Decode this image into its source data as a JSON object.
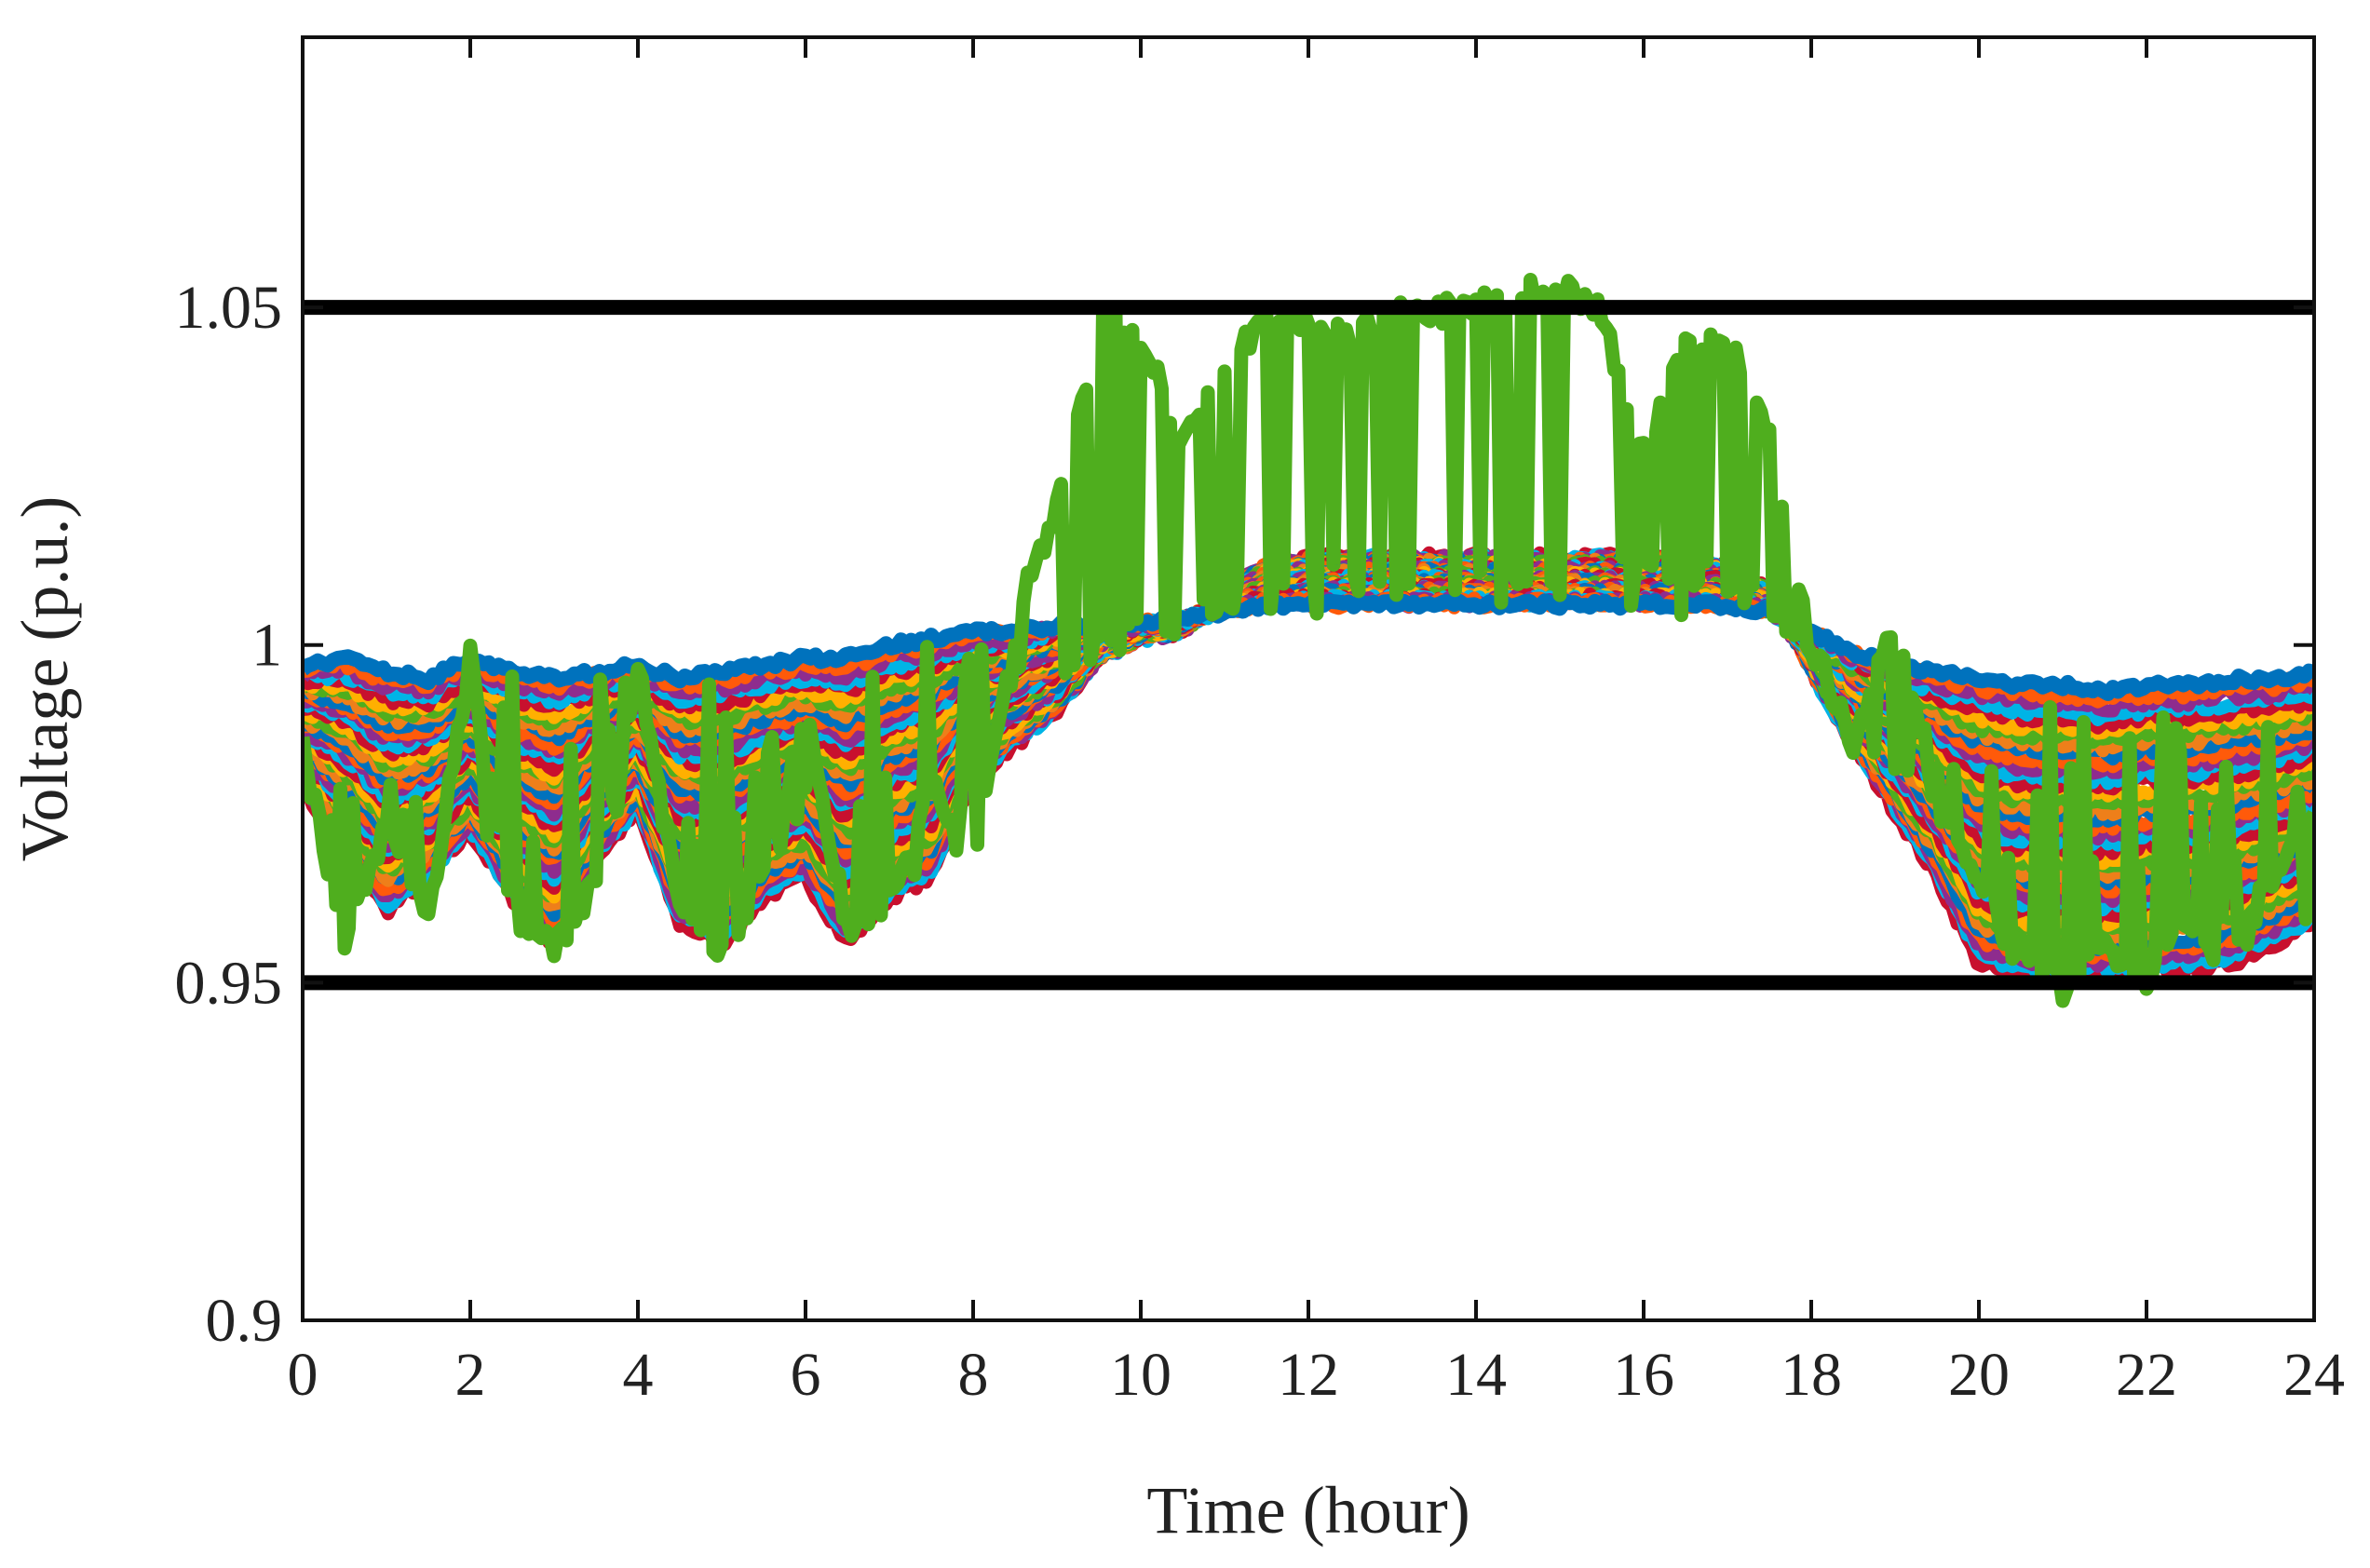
{
  "chart_data": {
    "type": "line",
    "title": "",
    "xlabel": "Time (hour)",
    "ylabel": "Voltage (p.u.)",
    "xlim": [
      0,
      24
    ],
    "ylim": [
      0.9,
      1.09
    ],
    "xticks": [
      0,
      2,
      4,
      6,
      8,
      10,
      12,
      14,
      16,
      18,
      20,
      22,
      24
    ],
    "xtick_labels": [
      "0",
      "2",
      "4",
      "6",
      "8",
      "10",
      "12",
      "14",
      "16",
      "18",
      "20",
      "22",
      "24"
    ],
    "yticks": [
      0.9,
      0.95,
      1.0,
      1.05
    ],
    "ytick_labels": [
      "0.9",
      "0.95",
      "1",
      "1.05"
    ],
    "grid": false,
    "legend": "none",
    "limit_lines": [
      {
        "y": 1.05,
        "color": "#000000"
      },
      {
        "y": 0.95,
        "color": "#000000"
      }
    ],
    "band_colors": [
      "#0072BD",
      "#FF5A0A",
      "#8E2C8E",
      "#00B4E6",
      "#C8102E",
      "#FFB000",
      "#4FAE1E",
      "#EE7F1A"
    ],
    "base_x": [
      0,
      0.5,
      1,
      1.5,
      2,
      2.5,
      3,
      3.5,
      4,
      4.5,
      5,
      5.5,
      6,
      6.5,
      7,
      7.5,
      8,
      8.5,
      9,
      9.5,
      10,
      10.5,
      11,
      11.5,
      12,
      12.5,
      13,
      13.5,
      14,
      14.5,
      15,
      15.5,
      16,
      16.5,
      17,
      17.5,
      18,
      18.5,
      19,
      19.5,
      20,
      20.5,
      21,
      21.5,
      22,
      22.5,
      23,
      23.5,
      24
    ],
    "series": [
      {
        "role": "top-bus",
        "color": "#0072BD",
        "y": [
          0.997,
          0.998,
          0.996,
          0.995,
          0.998,
          0.996,
          0.995,
          0.996,
          0.997,
          0.995,
          0.996,
          0.997,
          0.998,
          0.998,
          1.0,
          1.001,
          1.002,
          1.002,
          1.003,
          1.003,
          1.003,
          1.004,
          1.005,
          1.006,
          1.006,
          1.006,
          1.006,
          1.006,
          1.006,
          1.006,
          1.006,
          1.006,
          1.006,
          1.006,
          1.006,
          1.005,
          1.002,
          0.999,
          0.997,
          0.996,
          0.995,
          0.994,
          0.994,
          0.993,
          0.994,
          0.994,
          0.995,
          0.995,
          0.996
        ]
      },
      {
        "role": "bottom-envelope",
        "color": "#C8102E",
        "y": [
          0.978,
          0.97,
          0.96,
          0.965,
          0.972,
          0.962,
          0.955,
          0.968,
          0.975,
          0.958,
          0.955,
          0.962,
          0.965,
          0.955,
          0.962,
          0.965,
          0.98,
          0.985,
          0.99,
          0.998,
          1.001,
          1.002,
          1.008,
          1.012,
          1.013,
          1.013,
          1.013,
          1.013,
          1.013,
          1.013,
          1.013,
          1.013,
          1.013,
          1.013,
          1.012,
          1.008,
          0.996,
          0.985,
          0.975,
          0.965,
          0.952,
          0.95,
          0.95,
          0.95,
          0.951,
          0.951,
          0.952,
          0.955,
          0.958
        ]
      },
      {
        "role": "end-bus",
        "color": "#4FAE1E",
        "y": [
          0.985,
          0.955,
          0.975,
          0.96,
          0.998,
          0.96,
          0.955,
          0.965,
          0.997,
          0.96,
          0.955,
          0.965,
          0.99,
          0.958,
          0.962,
          0.98,
          0.965,
          1.005,
          1.02,
          1.048,
          1.046,
          1.03,
          1.04,
          1.049,
          1.048,
          1.045,
          1.049,
          1.049,
          1.051,
          1.052,
          1.053,
          1.049,
          1.028,
          1.045,
          1.046,
          1.03,
          1.0,
          0.985,
          1.005,
          0.975,
          0.965,
          0.955,
          0.949,
          0.955,
          0.95,
          0.96,
          0.952,
          0.965,
          0.975
        ]
      }
    ]
  }
}
